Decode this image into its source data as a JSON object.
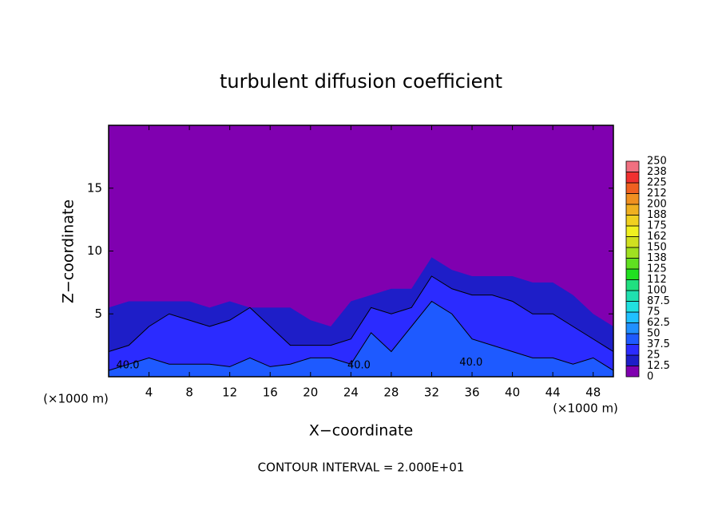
{
  "chart_data": {
    "type": "contour",
    "title": "turbulent diffusion coefficient",
    "xlabel": "X−coordinate",
    "ylabel": "Z−coordinate",
    "x_unit_left": "(×1000 m)",
    "x_unit_right": "(×1000 m)",
    "annotation": "CONTOUR INTERVAL = 2.000E+01",
    "xlim": [
      0,
      50
    ],
    "ylim": [
      0,
      20
    ],
    "xticks": [
      4,
      8,
      12,
      16,
      20,
      24,
      28,
      32,
      36,
      40,
      44,
      48
    ],
    "yticks": [
      5,
      10,
      15
    ],
    "background_color": "#8000b0",
    "colorbar": {
      "levels": [
        0,
        12.5,
        25,
        37.5,
        50,
        62.5,
        75,
        87.5,
        100,
        112,
        125,
        138,
        150,
        162,
        175,
        188,
        200,
        212,
        225,
        238,
        250
      ],
      "colors": [
        "#8000b0",
        "#1e1ec8",
        "#2b2bff",
        "#1e5aff",
        "#2090ff",
        "#20c0ff",
        "#20e0e0",
        "#20e0b0",
        "#20e080",
        "#20e020",
        "#60e020",
        "#a0e020",
        "#d0e020",
        "#f0f020",
        "#f0d020",
        "#f0b020",
        "#f09020",
        "#f06020",
        "#f03030",
        "#f07080"
      ]
    },
    "x": [
      0,
      2,
      4,
      6,
      8,
      10,
      12,
      14,
      16,
      18,
      20,
      22,
      24,
      26,
      28,
      30,
      32,
      34,
      36,
      38,
      40,
      42,
      44,
      46,
      48,
      50
    ],
    "layers": [
      {
        "level": 12.5,
        "top": [
          5.5,
          6,
          6,
          6,
          6,
          5.5,
          6,
          5.5,
          5.5,
          5.5,
          4.5,
          4,
          6,
          6.5,
          7,
          7,
          9.5,
          8.5,
          8,
          8,
          8,
          7.5,
          7.5,
          6.5,
          5,
          4
        ]
      },
      {
        "level": 25,
        "top": [
          2,
          2.5,
          4,
          5,
          4.5,
          4,
          4.5,
          5.5,
          4,
          2.5,
          2.5,
          2.5,
          3,
          5.5,
          5,
          5.5,
          8,
          7,
          6.5,
          6.5,
          6,
          5,
          5,
          4,
          3,
          2
        ]
      },
      {
        "level": 37.5,
        "top": [
          0.5,
          1,
          1.5,
          1,
          1,
          1,
          0.8,
          1.5,
          0.8,
          1,
          1.5,
          1.5,
          1,
          3.5,
          2,
          4,
          6,
          5,
          3,
          2.5,
          2,
          1.5,
          1.5,
          1,
          1.5,
          0.5
        ]
      }
    ],
    "contour_labels": [
      {
        "x": 1.9,
        "y": 0.9,
        "value": 40,
        "label": "40.0"
      },
      {
        "x": 24.8,
        "y": 0.9,
        "value": 40,
        "label": "40.0"
      },
      {
        "x": 35.9,
        "y": 1.1,
        "value": 40,
        "label": "40.0"
      }
    ]
  }
}
